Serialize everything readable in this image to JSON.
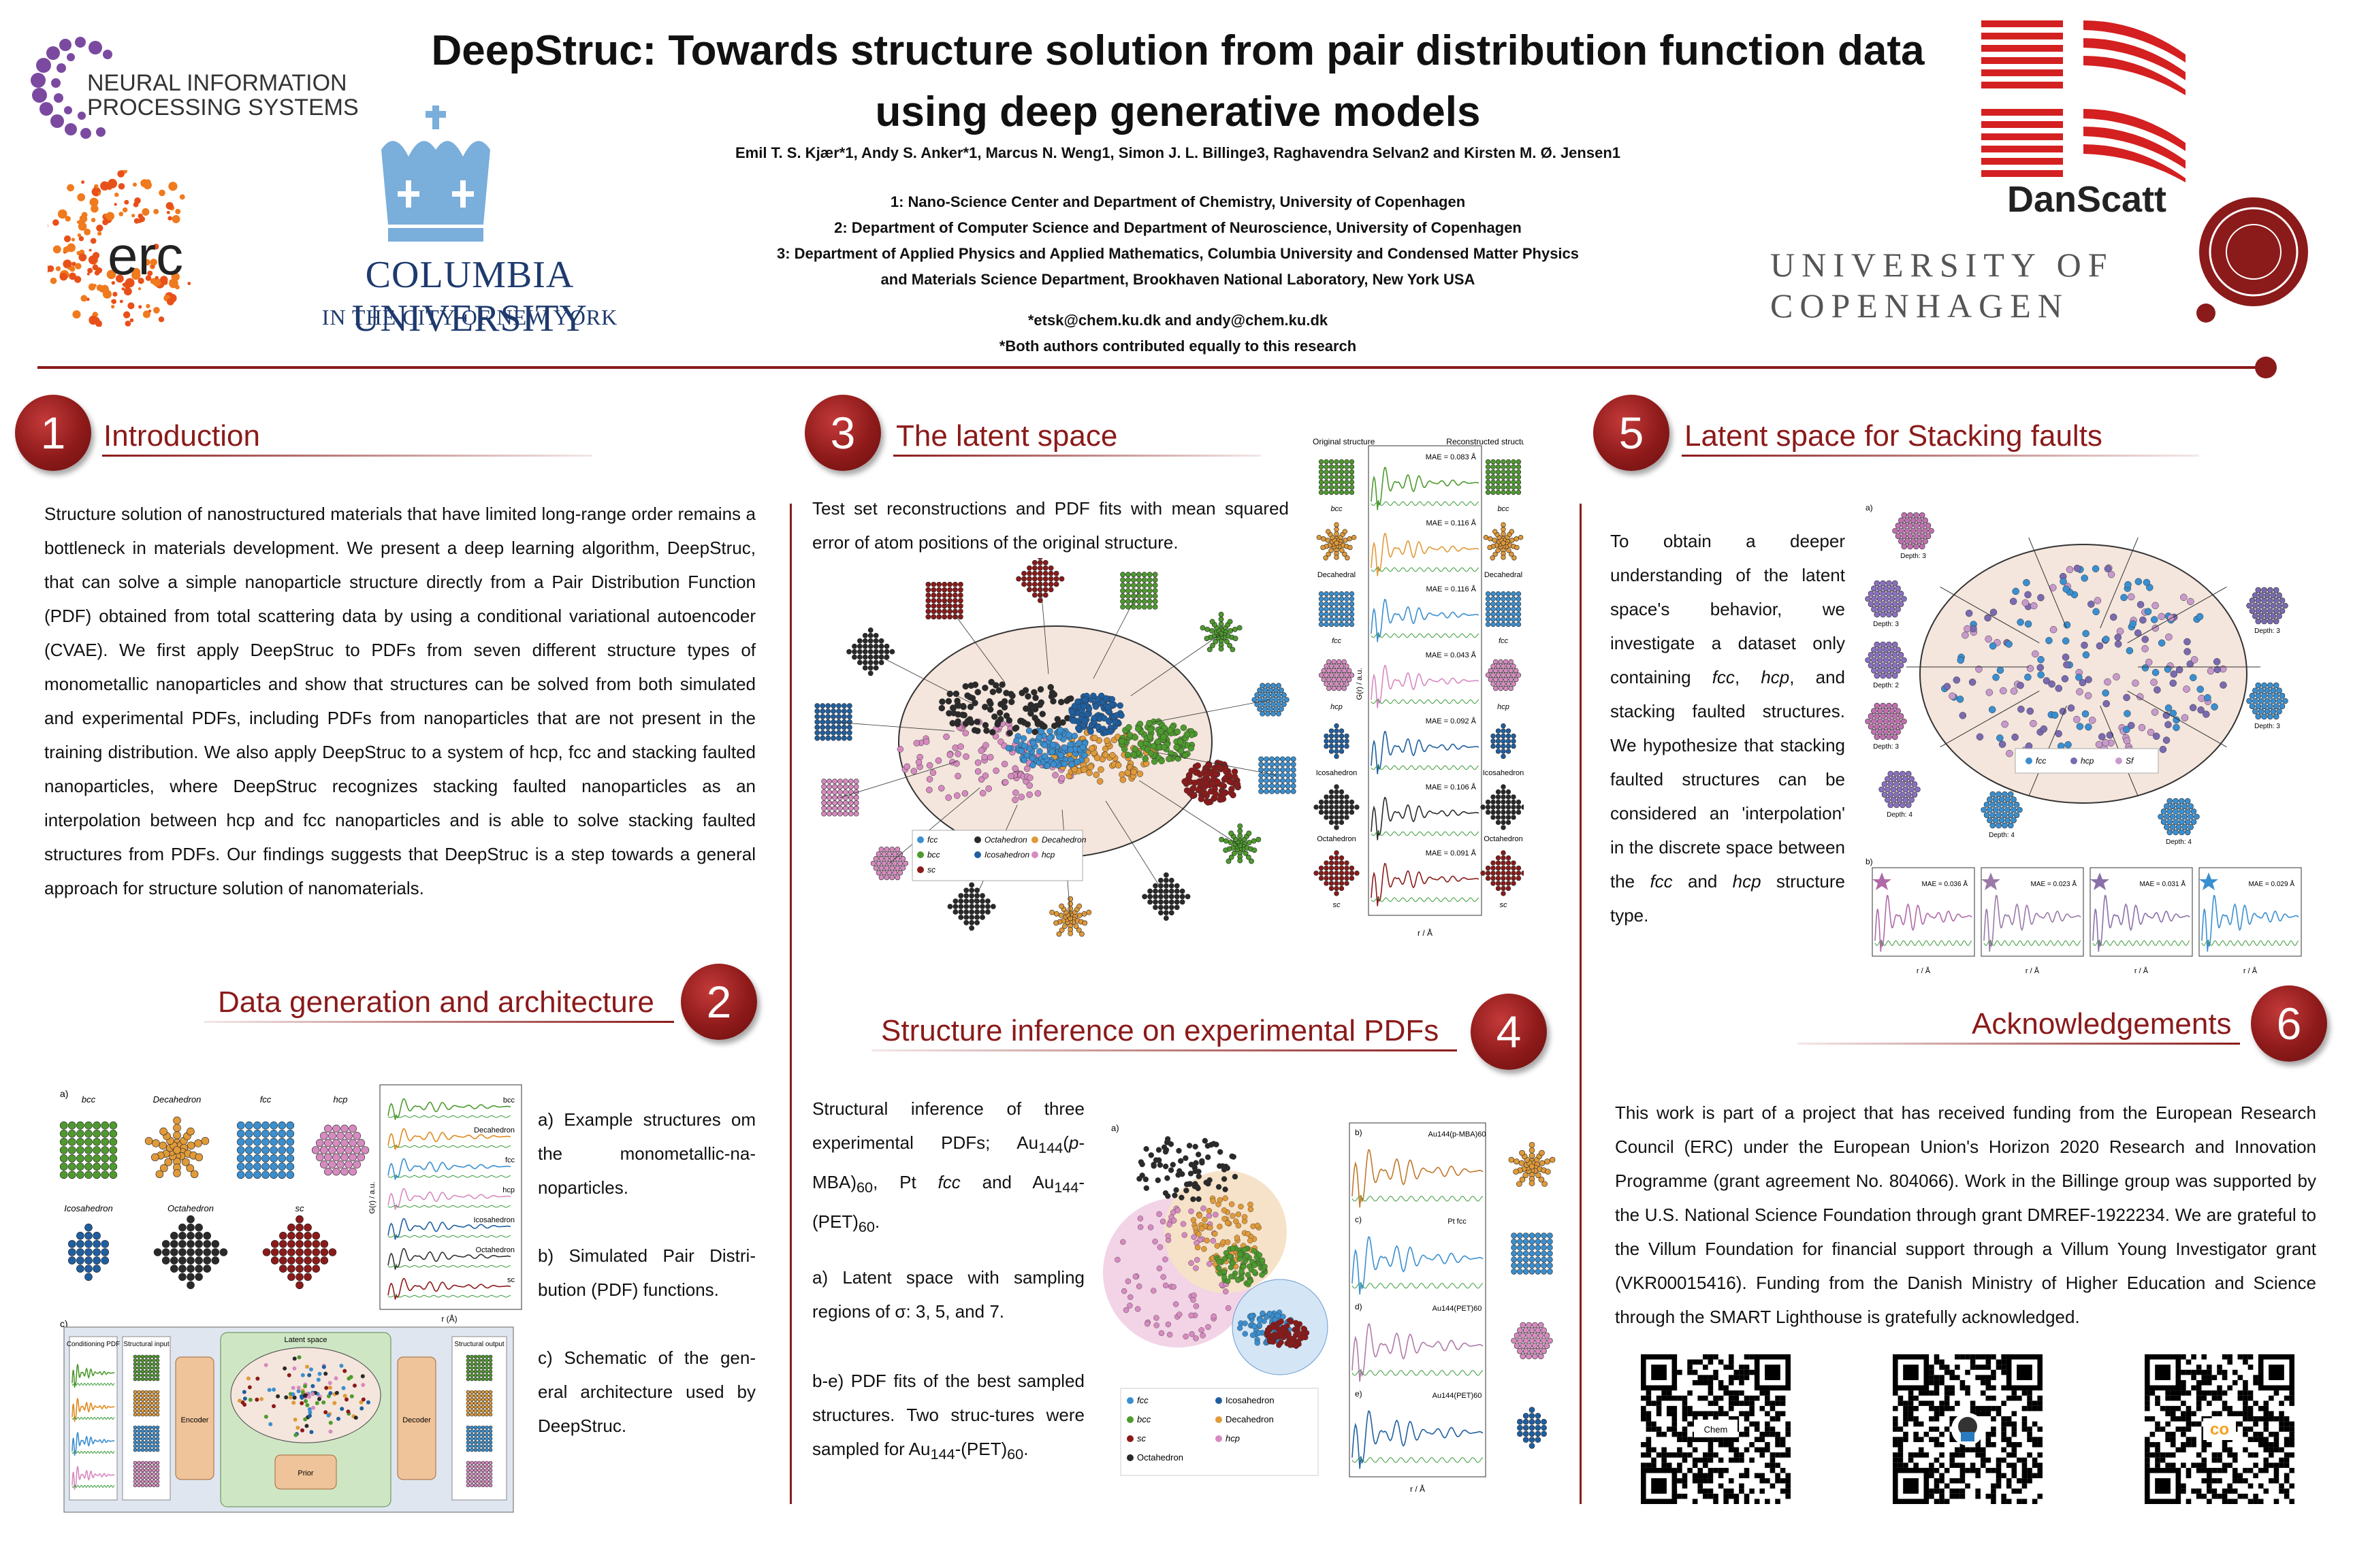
{
  "header": {
    "title_line1": "DeepStruc: Towards structure solution from pair distribution function data",
    "title_line2": "using deep generative models",
    "authors": "Emil T. S. Kjær*1, Andy S. Anker*1, Marcus N. Weng1, Simon J. L. Billinge3, Raghavendra Selvan2 and Kirsten M. Ø. Jensen1",
    "affiliations": [
      "1: Nano-Science Center and Department of Chemistry, University of Copenhagen",
      "2: Department of Computer Science and Department of Neuroscience, University of Copenhagen",
      "3:  Department of Applied Physics and Applied Mathematics, Columbia University and Condensed Matter Physics",
      "and Materials Science Department, Brookhaven National Laboratory, New York USA"
    ],
    "emails": "*etsk@chem.ku.dk and andy@chem.ku.dk",
    "equal_note": "*Both authors contributed equally to this research"
  },
  "logos": {
    "neurips_line1": "NEURAL INFORMATION",
    "neurips_line2": "PROCESSING SYSTEMS",
    "erc": "erc",
    "columbia_line1": "COLUMBIA UNIVERSITY",
    "columbia_line2": "IN THE CITY OF NEW YORK",
    "danscatt": "DanScatt",
    "ucph_line1": "UNIVERSITY OF",
    "ucph_line2": "COPENHAGEN"
  },
  "sections": {
    "s1": {
      "num": "1",
      "title": "Introduction",
      "text": "Structure solution of nanostructured materials that have limited long-range order remains a bottleneck in materials development. We present a deep learning algorithm, DeepStruc, that can solve a simple nanoparticle structure directly from a Pair Distribution Function (PDF) obtained from total scattering data by using a conditional variational autoencoder (CVAE). We first apply DeepStruc to PDFs from seven different structure types of monometallic nanoparticles and show that structures can be solved from both simulated and experimental PDFs, including PDFs from nanoparticles that are not present in the training distribution. We also apply DeepStruc to a system of hcp, fcc and stacking faulted nanoparticles, where DeepStruc recognizes stacking faulted nanoparticles as an interpolation between hcp and fcc nanoparticles and is able to solve stacking faulted structures from PDFs. Our findings suggests that DeepStruc is a step towards a general approach for structure solution of nanomaterials."
    },
    "s2": {
      "num": "2",
      "title": "Data generation and architecture",
      "text_a": "a) Example structures om the monometallic-na-noparticles.",
      "text_b": "b) Simulated Pair Distri-bution (PDF) functions.",
      "text_c": "c) Schematic of the gen-eral architecture used by DeepStruc."
    },
    "s3": {
      "num": "3",
      "title": "The latent space",
      "text": "Test set reconstructions and PDF fits with mean squared error of atom positions of the original structure."
    },
    "s4": {
      "num": "4",
      "title": "Structure inference on experimental PDFs",
      "text_1": "Structural inference of three experimental PDFs; Au144(p-MBA)60, Pt fcc and Au144-(PET)60.",
      "text_2": "a) Latent space with sampling regions of σ: 3, 5, and 7.",
      "text_3": "b-e) PDF fits of the best sampled structures. Two struc-tures were sampled for Au144-(PET)60."
    },
    "s5": {
      "num": "5",
      "title": "Latent space for Stacking faults",
      "text": "To obtain a deeper understanding of the latent space's behavior, we investigate a dataset only containing fcc, hcp, and stacking faulted structures. We hypothesize that stacking faulted structures can be considered an 'interpolation' in the discrete space between the fcc and hcp structure type."
    },
    "s6": {
      "num": "6",
      "title": "Acknowledgements",
      "text": "This work is part of a project that has received funding from the European Research Council (ERC) under the European Union's Horizon 2020 Research and Innovation Programme (grant agreement No. 804066). Work in the Billinge group was supported by the U.S. National Science Foundation through grant DMREF-1922234. We are grateful to the Villum Foundation for financial support through a Villum Young Investigator grant (VKR00015416). Funding from the Danish Ministry of Higher Education and Science through the SMART Lighthouse is gratefully acknowledged."
    }
  },
  "fig2": {
    "a_labels": [
      "bcc",
      "Decahedron",
      "fcc",
      "hcp",
      "Icosahedron",
      "Octahedron",
      "sc"
    ],
    "b_labels": [
      "bcc",
      "Decahedron",
      "fcc",
      "hcp",
      "Icosahedron",
      "Octahedron",
      "sc"
    ],
    "b_xlabel": "r (Å)",
    "b_ylabel": "G(r) / a.u.",
    "c_labels": {
      "cond": "Conditioning PDF",
      "struct_in": "Structural input",
      "encoder": "Encoder",
      "latent": "Latent space",
      "decoder": "Decoder",
      "struct_out": "Structural output",
      "prior": "Prior"
    }
  },
  "fig3": {
    "col1": "Original structure",
    "col3": "Reconstructed structure",
    "maes": [
      "MAE = 0.083 Å",
      "MAE = 0.116 Å",
      "MAE = 0.116 Å",
      "MAE = 0.043 Å",
      "MAE = 0.092 Å",
      "MAE = 0.106 Å",
      "MAE = 0.091 Å"
    ],
    "struct_labels": [
      "bcc",
      "Decahedral",
      "fcc",
      "hcp",
      "Icosahedron",
      "Octahedron",
      "sc"
    ],
    "xlabel": "r / Å",
    "ylabel": "G(r) / a.u.",
    "legend": [
      "fcc",
      "Octahedron",
      "Decahedron",
      "bcc",
      "Icosahedron",
      "hcp",
      "sc"
    ]
  },
  "fig4": {
    "legend": [
      "fcc",
      "Icosahedron",
      "bcc",
      "Decahedron",
      "sc",
      "hcp",
      "Octahedron"
    ],
    "panel_titles": [
      "Au144(p-MBA)60",
      "Pt fcc",
      "Au144(PET)60",
      "Au144(PET)60"
    ],
    "panel_letters": [
      "b)",
      "c)",
      "d)",
      "e)"
    ],
    "xlabel": "r / Å"
  },
  "fig5": {
    "legend": [
      "fcc",
      "hcp",
      "Sf"
    ],
    "maes": [
      "MAE = 0.036 Å",
      "MAE = 0.023 Å",
      "MAE = 0.031 Å",
      "MAE = 0.029 Å"
    ],
    "depth_labels": [
      "Depth: 3",
      "Depth: 3",
      "Depth: 2",
      "Depth: 3",
      "Depth: 4",
      "Depth: 4",
      "Depth: 4",
      "Depth: 3",
      "Depth: 3"
    ],
    "xlabel": "r / Å"
  },
  "qr": {
    "qr1_label": "Chem",
    "qr3_label": "co"
  },
  "colors": {
    "accent": "#8b1a1a",
    "fcc": "#3a8fd0",
    "bcc": "#4e9a2e",
    "sc": "#8b1a1a",
    "octa": "#2a2a2a",
    "ico": "#1f5fa0",
    "deca": "#e09a3a",
    "hcp": "#d78ac0"
  }
}
